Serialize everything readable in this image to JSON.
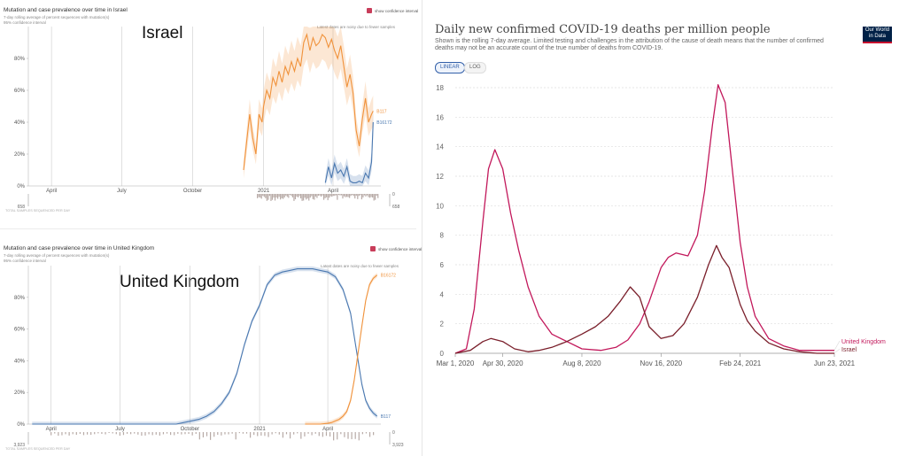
{
  "israel_panel": {
    "title": "Mutation and case prevalence over time in Israel",
    "legend_line": "7-day rolling average of percent sequences with mutation(s)",
    "legend_ci": "95% confidence interval",
    "toggle_label": "show confidence interval",
    "country_label": "Israel",
    "note": "Latest dates are noisy due to fewer samples",
    "footer_label": "TOTAL SAMPLES SEQUENCED PER DAY",
    "scale_top": "0",
    "scale_left": "658",
    "scale_right": "658",
    "colors": {
      "B117": "#f0923b",
      "B16172": "#4a78b0"
    }
  },
  "uk_panel": {
    "title": "Mutation and case prevalence over time in United Kingdom",
    "legend_line": "7-day rolling average of percent sequences with mutation(s)",
    "legend_ci": "95% confidence interval",
    "toggle_label": "show confidence interval",
    "country_label": "United Kingdom",
    "note": "Latest dates are noisy due to fewer samples",
    "footer_label": "TOTAL SAMPLES SEQUENCED PER DAY",
    "scale_top": "0",
    "scale_left": "3,923",
    "scale_right": "3,923"
  },
  "owid": {
    "title": "Daily new confirmed COVID-19 deaths per million people",
    "subtitle": "Shown is the rolling 7-day average. Limited testing and challenges in the attribution of the cause of death means that the number of confirmed deaths may not be an accurate count of the true number of deaths from COVID-19.",
    "logo": "Our World in Data",
    "btn_linear": "LINEAR",
    "btn_log": "LOG"
  },
  "chart_data": [
    {
      "type": "line",
      "title": "Mutation and case prevalence over time in Israel",
      "x_ticks": [
        "April",
        "July",
        "October",
        "2021",
        "April"
      ],
      "y_ticks": [
        "0%",
        "20%",
        "40%",
        "60%",
        "80%"
      ],
      "ylim": [
        0,
        100
      ],
      "series": [
        {
          "name": "B117",
          "x": [
            -26,
            -22,
            -18,
            -14,
            -10,
            -6,
            -2,
            0,
            4,
            8,
            12,
            16,
            20,
            24,
            28,
            32,
            36,
            40,
            44,
            48,
            52,
            56,
            60,
            64,
            68,
            72,
            76,
            80,
            84,
            88,
            92,
            96,
            100,
            104,
            108,
            112,
            116,
            120,
            124,
            128,
            132,
            136,
            140,
            142
          ],
          "y": [
            10,
            28,
            45,
            30,
            20,
            45,
            40,
            50,
            60,
            55,
            68,
            63,
            72,
            65,
            75,
            70,
            78,
            72,
            80,
            75,
            90,
            95,
            85,
            93,
            88,
            90,
            95,
            93,
            87,
            92,
            85,
            80,
            88,
            75,
            62,
            70,
            58,
            35,
            25,
            42,
            55,
            40,
            45,
            47
          ]
        },
        {
          "name": "B16172",
          "x": [
            80,
            84,
            88,
            92,
            96,
            100,
            104,
            108,
            112,
            116,
            120,
            124,
            128,
            132,
            136,
            140,
            142
          ],
          "y": [
            2,
            12,
            5,
            14,
            8,
            10,
            6,
            12,
            3,
            2,
            2,
            3,
            2,
            8,
            5,
            15,
            40
          ]
        }
      ]
    },
    {
      "type": "line",
      "title": "Mutation and case prevalence over time in United Kingdom",
      "x_ticks": [
        "April",
        "July",
        "October",
        "2021",
        "April"
      ],
      "y_ticks": [
        "0%",
        "20%",
        "40%",
        "60%",
        "80%"
      ],
      "ylim": [
        0,
        100
      ],
      "series": [
        {
          "name": "B117",
          "x": [
            -300,
            -290,
            -280,
            -270,
            -260,
            -250,
            -240,
            -230,
            -220,
            -200,
            -170,
            -140,
            -110,
            -100,
            -90,
            -80,
            -70,
            -60,
            -50,
            -40,
            -30,
            -20,
            -10,
            0,
            10,
            20,
            30,
            40,
            50,
            60,
            70,
            80,
            90,
            100,
            110,
            120,
            125,
            130,
            135,
            140,
            145,
            150,
            155
          ],
          "y": [
            0,
            0,
            0,
            0,
            0,
            0,
            0,
            0,
            0,
            0,
            0,
            0,
            0,
            1,
            2,
            3,
            5,
            8,
            13,
            20,
            32,
            50,
            65,
            75,
            88,
            94,
            96,
            97,
            98,
            98,
            98,
            97,
            96,
            93,
            85,
            70,
            55,
            40,
            25,
            15,
            10,
            7,
            5
          ]
        },
        {
          "name": "B16172",
          "x": [
            60,
            70,
            80,
            90,
            95,
            100,
            105,
            110,
            115,
            120,
            125,
            130,
            135,
            140,
            145,
            150,
            155
          ],
          "y": [
            0,
            0,
            0,
            0.5,
            1,
            2,
            3,
            5,
            8,
            15,
            28,
            45,
            62,
            78,
            88,
            92,
            94
          ]
        }
      ]
    },
    {
      "type": "line",
      "title": "Daily new confirmed COVID-19 deaths per million people",
      "x_ticks": [
        "Mar 1, 2020",
        "Apr 30, 2020",
        "Aug 8, 2020",
        "Nov 16, 2020",
        "Feb 24, 2021",
        "Jun 23, 2021"
      ],
      "y_ticks": [
        0,
        2,
        4,
        6,
        8,
        10,
        12,
        14,
        16,
        18
      ],
      "xlim": [
        "2020-03-01",
        "2021-06-23"
      ],
      "ylim": [
        0,
        18
      ],
      "grid": true,
      "series": [
        {
          "name": "United Kingdom",
          "color": "#c2185b",
          "x": [
            "2020-03-01",
            "2020-03-15",
            "2020-03-25",
            "2020-04-05",
            "2020-04-12",
            "2020-04-20",
            "2020-04-30",
            "2020-05-10",
            "2020-05-20",
            "2020-06-01",
            "2020-06-15",
            "2020-07-01",
            "2020-07-20",
            "2020-08-08",
            "2020-09-01",
            "2020-09-20",
            "2020-10-05",
            "2020-10-20",
            "2020-11-01",
            "2020-11-16",
            "2020-11-25",
            "2020-12-05",
            "2020-12-20",
            "2021-01-01",
            "2021-01-10",
            "2021-01-20",
            "2021-01-27",
            "2021-02-05",
            "2021-02-15",
            "2021-02-24",
            "2021-03-05",
            "2021-03-15",
            "2021-04-01",
            "2021-04-20",
            "2021-05-10",
            "2021-06-01",
            "2021-06-23"
          ],
          "y": [
            0,
            0.3,
            3,
            9,
            12.5,
            13.8,
            12.5,
            9.5,
            7,
            4.5,
            2.5,
            1.3,
            0.8,
            0.3,
            0.2,
            0.4,
            0.9,
            2,
            3.5,
            5.8,
            6.5,
            6.8,
            6.6,
            8,
            11,
            15.5,
            18.2,
            17,
            12,
            7.5,
            4.5,
            2.5,
            1,
            0.5,
            0.2,
            0.2,
            0.2
          ]
        },
        {
          "name": "Israel",
          "color": "#7a1f2b",
          "x": [
            "2020-03-01",
            "2020-03-20",
            "2020-04-05",
            "2020-04-15",
            "2020-04-30",
            "2020-05-15",
            "2020-06-01",
            "2020-06-15",
            "2020-07-01",
            "2020-07-20",
            "2020-08-08",
            "2020-08-25",
            "2020-09-10",
            "2020-09-25",
            "2020-10-08",
            "2020-10-20",
            "2020-11-01",
            "2020-11-16",
            "2020-12-01",
            "2020-12-15",
            "2021-01-01",
            "2021-01-15",
            "2021-01-25",
            "2021-02-01",
            "2021-02-10",
            "2021-02-24",
            "2021-03-05",
            "2021-03-15",
            "2021-04-01",
            "2021-04-20",
            "2021-05-10",
            "2021-06-01",
            "2021-06-23"
          ],
          "y": [
            0,
            0.2,
            0.8,
            1,
            0.8,
            0.3,
            0.1,
            0.2,
            0.4,
            0.8,
            1.3,
            1.8,
            2.5,
            3.5,
            4.5,
            3.8,
            1.8,
            1,
            1.2,
            2,
            3.8,
            6,
            7.3,
            6.5,
            5.8,
            3.3,
            2.2,
            1.5,
            0.7,
            0.3,
            0.1,
            0,
            0
          ]
        }
      ]
    }
  ]
}
